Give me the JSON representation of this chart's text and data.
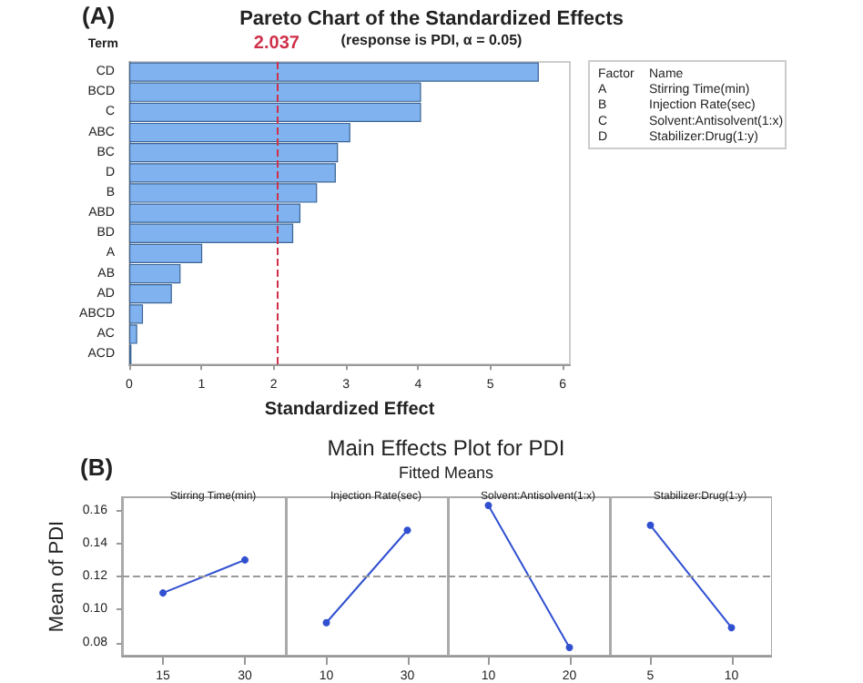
{
  "chart_data": [
    {
      "type": "bar",
      "orientation": "horizontal",
      "title": "Pareto Chart of the Standardized Effects",
      "subtitle": "(response is PDI, α = 0.05)",
      "xlabel": "Standardized Effect",
      "ylabel": "Term",
      "categories": [
        "CD",
        "BCD",
        "C",
        "ABC",
        "BC",
        "D",
        "B",
        "ABD",
        "BD",
        "A",
        "AB",
        "AD",
        "ABCD",
        "AC",
        "ACD"
      ],
      "values": [
        5.67,
        4.04,
        4.04,
        3.06,
        2.89,
        2.86,
        2.6,
        2.37,
        2.27,
        1.01,
        0.71,
        0.59,
        0.19,
        0.11,
        0.03
      ],
      "color": "#7fb2ee",
      "xlim": [
        0,
        6.1
      ],
      "xticks": [
        0,
        1,
        2,
        3,
        4,
        5,
        6
      ],
      "grid": false,
      "ref_lines": [
        {
          "axis": "x",
          "value": 2.037,
          "label": "2.037",
          "color": "#d0304a",
          "line_style": "dashed"
        }
      ],
      "annotations": [
        "(A)",
        "Factor",
        "Name",
        "A",
        "Stirring Time(min)",
        "B",
        "Injection Rate(sec)",
        "C",
        "Solvent:Antisolvent(1:x)",
        "D",
        "Stabilizer:Drug(1:y)"
      ]
    },
    {
      "type": "line",
      "title": "Stirring Time(min)",
      "ylabel": "Mean of PDI",
      "annotations": [
        "(B)",
        "Main Effects Plot for PDI",
        "Fitted Means"
      ],
      "categories": [
        "15",
        "30"
      ],
      "values": [
        0.11,
        0.13
      ],
      "color": "#3050d0",
      "marker": "circle",
      "ylim": [
        0.072,
        0.168
      ],
      "yticks": [
        0.08,
        {
          "value": 0.1,
          "label": "0.10"
        },
        0.12,
        0.14,
        0.16
      ],
      "grid": false,
      "ref_lines": [
        {
          "axis": "y",
          "value": 0.12,
          "color": "#9a9a9a",
          "line_style": "dashed"
        }
      ]
    },
    {
      "type": "line",
      "title": "Injection Rate(sec)",
      "categories": [
        "10",
        "30"
      ],
      "values": [
        0.092,
        0.148
      ],
      "color": "#3050d0",
      "marker": "circle",
      "ylim": [
        0.072,
        0.168
      ],
      "yticks": [
        0.08,
        0.1,
        0.12,
        0.14,
        0.16
      ],
      "grid": false,
      "tick_labels": "x",
      "ref_lines": [
        {
          "axis": "y",
          "value": 0.12,
          "color": "#9a9a9a",
          "line_style": "dashed"
        }
      ]
    },
    {
      "type": "line",
      "title": "Solvent:Antisolvent(1:x)",
      "categories": [
        "10",
        "20"
      ],
      "values": [
        0.163,
        0.077
      ],
      "color": "#3050d0",
      "marker": "circle",
      "ylim": [
        0.072,
        0.168
      ],
      "yticks": [
        0.08,
        0.1,
        0.12,
        0.14,
        0.16
      ],
      "grid": false,
      "tick_labels": "x",
      "ref_lines": [
        {
          "axis": "y",
          "value": 0.12,
          "color": "#9a9a9a",
          "line_style": "dashed"
        }
      ]
    },
    {
      "type": "line",
      "title": "Stabilizer:Drug(1:y)",
      "categories": [
        "5",
        "10"
      ],
      "values": [
        0.151,
        0.089
      ],
      "color": "#3050d0",
      "marker": "circle",
      "ylim": [
        0.072,
        0.168
      ],
      "yticks": [
        0.08,
        0.1,
        0.12,
        0.14,
        0.16
      ],
      "grid": false,
      "tick_labels": "x",
      "ref_lines": [
        {
          "axis": "y",
          "value": 0.12,
          "color": "#9a9a9a",
          "line_style": "dashed"
        }
      ]
    }
  ]
}
